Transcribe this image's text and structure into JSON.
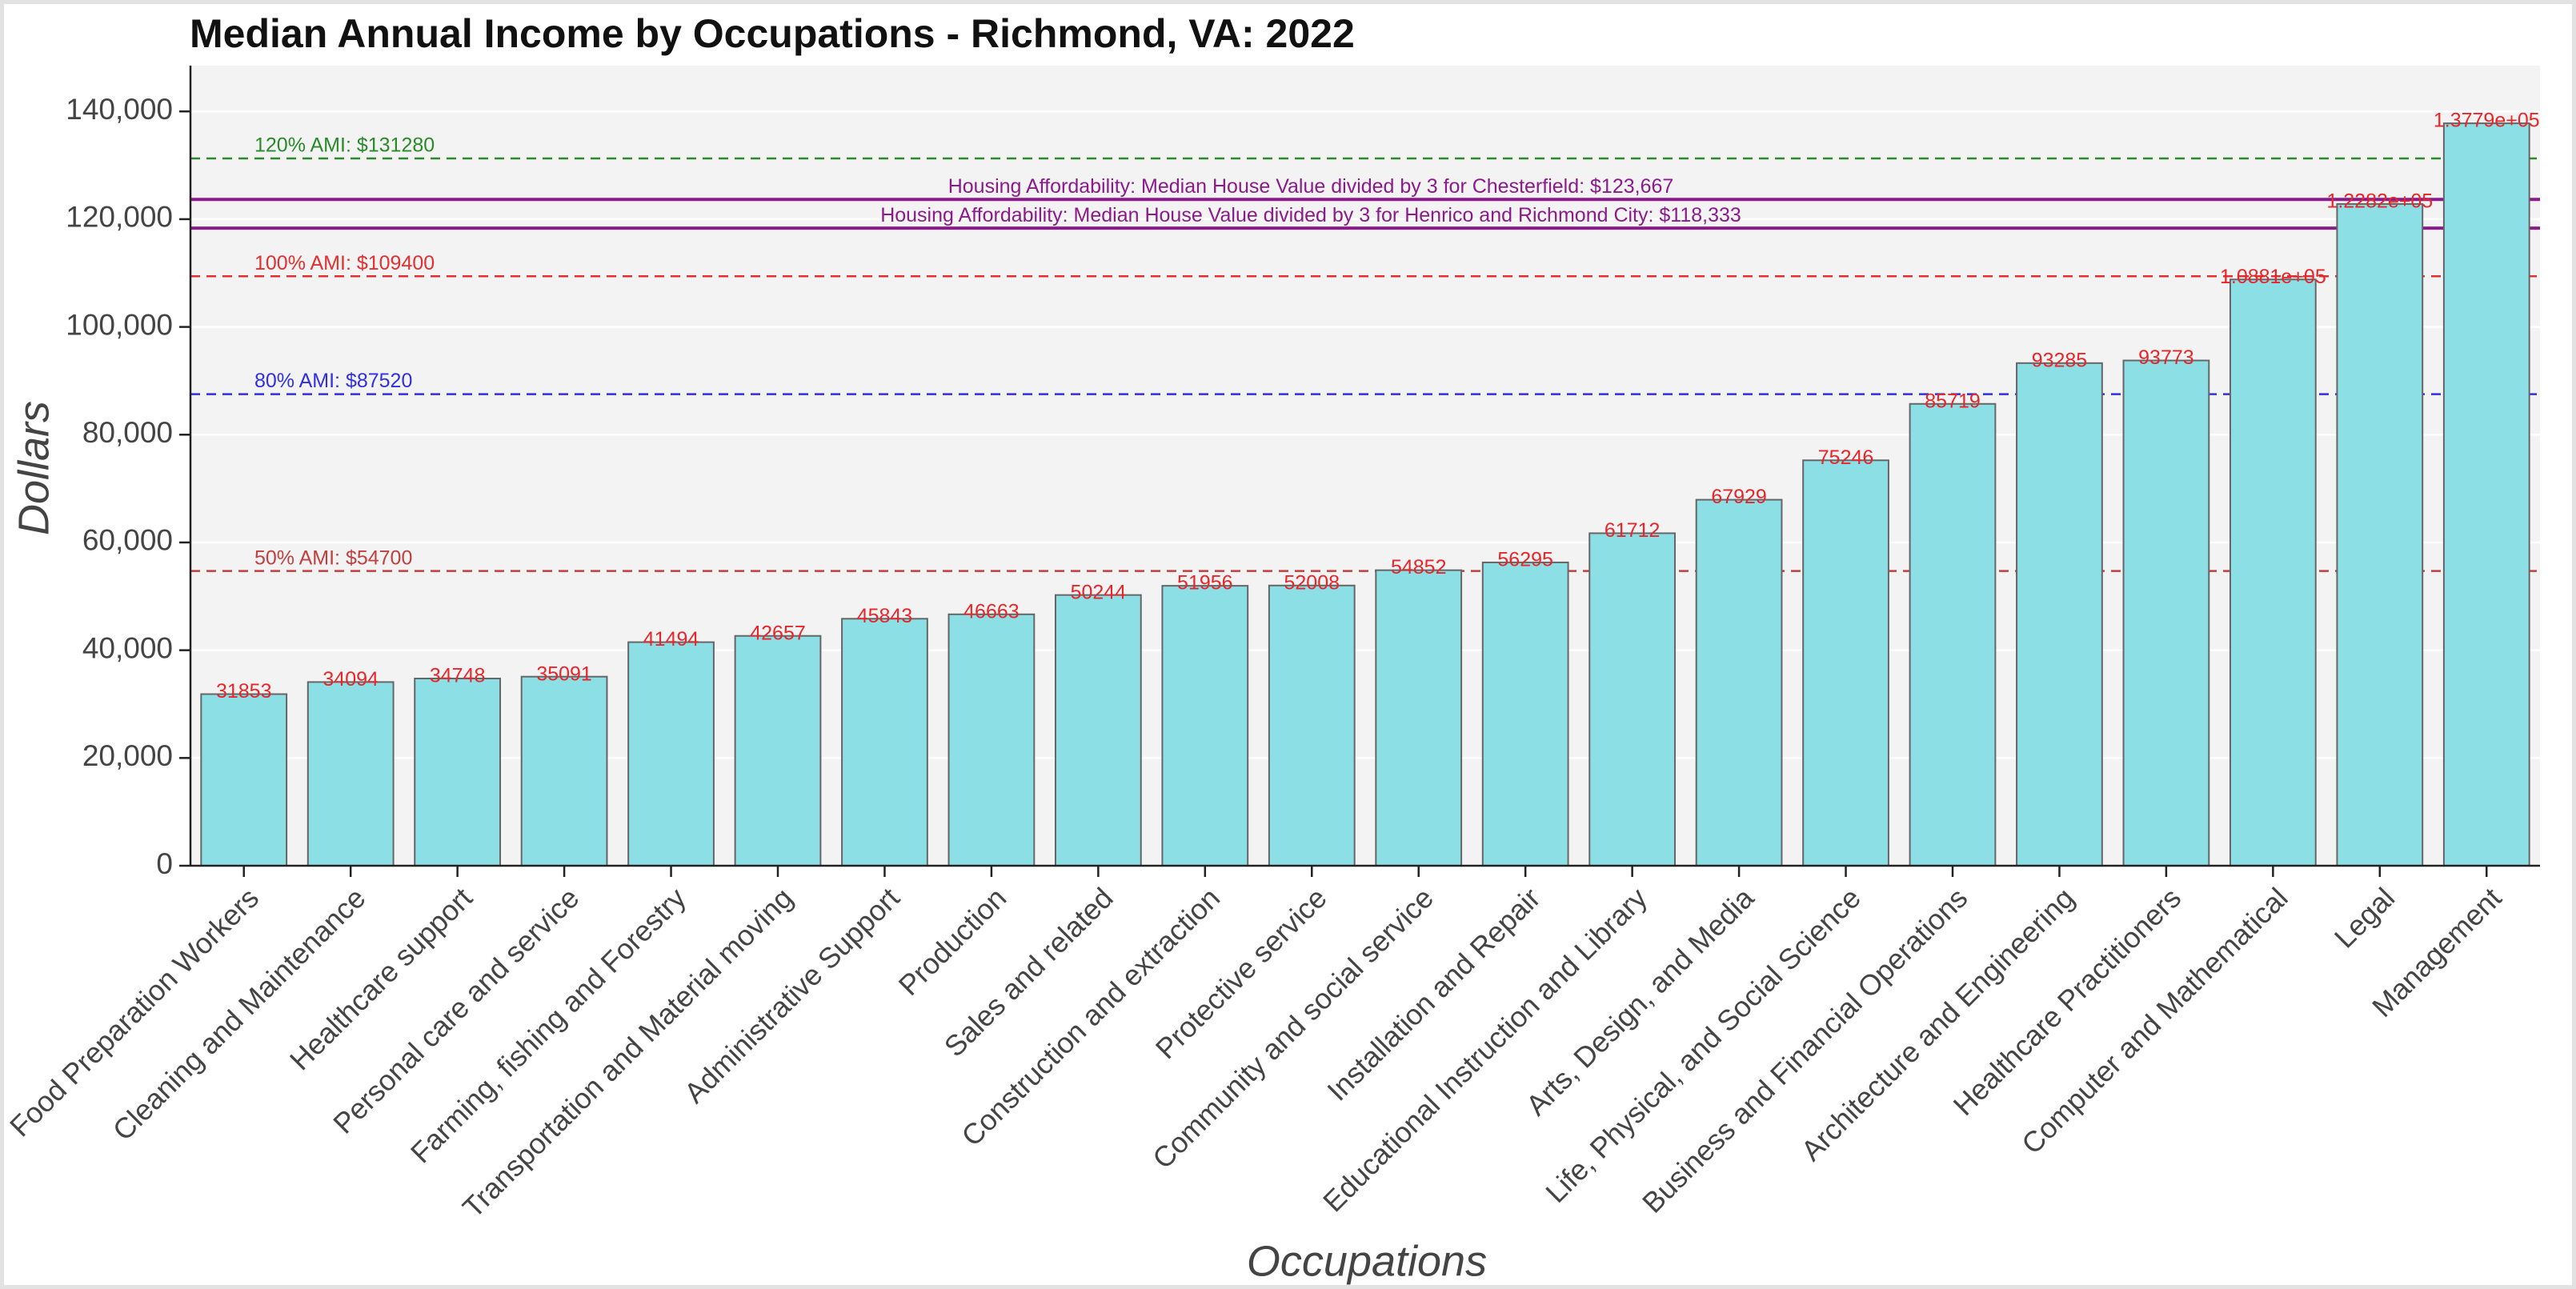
{
  "chart_data": {
    "type": "bar",
    "title": "Median Annual Income by Occupations - Richmond, VA: 2022",
    "x_label": "Occupations",
    "y_label": "Dollars",
    "categories": [
      "Food Preparation Workers",
      "Cleaning and Maintenance",
      "Healthcare support",
      "Personal care and service",
      "Farming, fishing and Forestry",
      "Transportation and Material moving",
      "Administrative Support",
      "Production",
      "Sales and related",
      "Construction and extraction",
      "Protective service",
      "Community and social service",
      "Installation and Repair",
      "Educational Instruction and Library",
      "Arts, Design, and Media",
      "Life, Physical, and Social Science",
      "Business and Financial Operations",
      "Architecture and Engineering",
      "Healthcare Practitioners",
      "Computer and Mathematical",
      "Legal",
      "Management"
    ],
    "values": [
      31853,
      34094,
      34748,
      35091,
      41494,
      42657,
      45843,
      46663,
      50244,
      51956,
      52008,
      54852,
      56295,
      61712,
      67929,
      75246,
      85719,
      93285,
      93773,
      108810,
      122820,
      137790
    ],
    "value_labels": [
      "31853",
      "34094",
      "34748",
      "35091",
      "41494",
      "42657",
      "45843",
      "46663",
      "50244",
      "51956",
      "52008",
      "54852",
      "56295",
      "61712",
      "67929",
      "75246",
      "85719",
      "93285",
      "93773",
      "1.0881e+05",
      "1.2282e+05",
      "1.3779e+05"
    ],
    "color": "#8ddfe6",
    "value_label_color": "#e8262a",
    "ylim": [
      0,
      148500
    ],
    "yticks": [
      {
        "value": 0,
        "label": "0"
      },
      {
        "value": 20000,
        "label": "20,000"
      },
      {
        "value": 40000,
        "label": "40,000"
      },
      {
        "value": 60000,
        "label": "60,000"
      },
      {
        "value": 80000,
        "label": "80,000"
      },
      {
        "value": 100000,
        "label": "100,000"
      },
      {
        "value": 120000,
        "label": "120,000"
      },
      {
        "value": 140000,
        "label": "140,000"
      }
    ],
    "grid": true,
    "reference_lines": [
      {
        "value": 131280,
        "label": "120% AMI: $131280",
        "color": "#2a8a2a",
        "style": "dashed",
        "placement": "left"
      },
      {
        "value": 123667,
        "label": "Housing Affordability: Median House Value divided by 3 for Chesterfield: $123,667",
        "color": "#8b1a8b",
        "style": "solid",
        "placement": "center"
      },
      {
        "value": 118333,
        "label": "Housing Affordability: Median House Value divided by 3 for Henrico and Richmond City: $118,333",
        "color": "#8b1a8b",
        "style": "solid",
        "placement": "center"
      },
      {
        "value": 109400,
        "label": "100% AMI: $109400",
        "color": "#e03030",
        "style": "dashed",
        "placement": "left"
      },
      {
        "value": 87520,
        "label": "80% AMI: $87520",
        "color": "#3030e0",
        "style": "dashed",
        "placement": "left"
      },
      {
        "value": 54700,
        "label": "50% AMI: $54700",
        "color": "#c04040",
        "style": "dashed",
        "placement": "left"
      }
    ]
  }
}
